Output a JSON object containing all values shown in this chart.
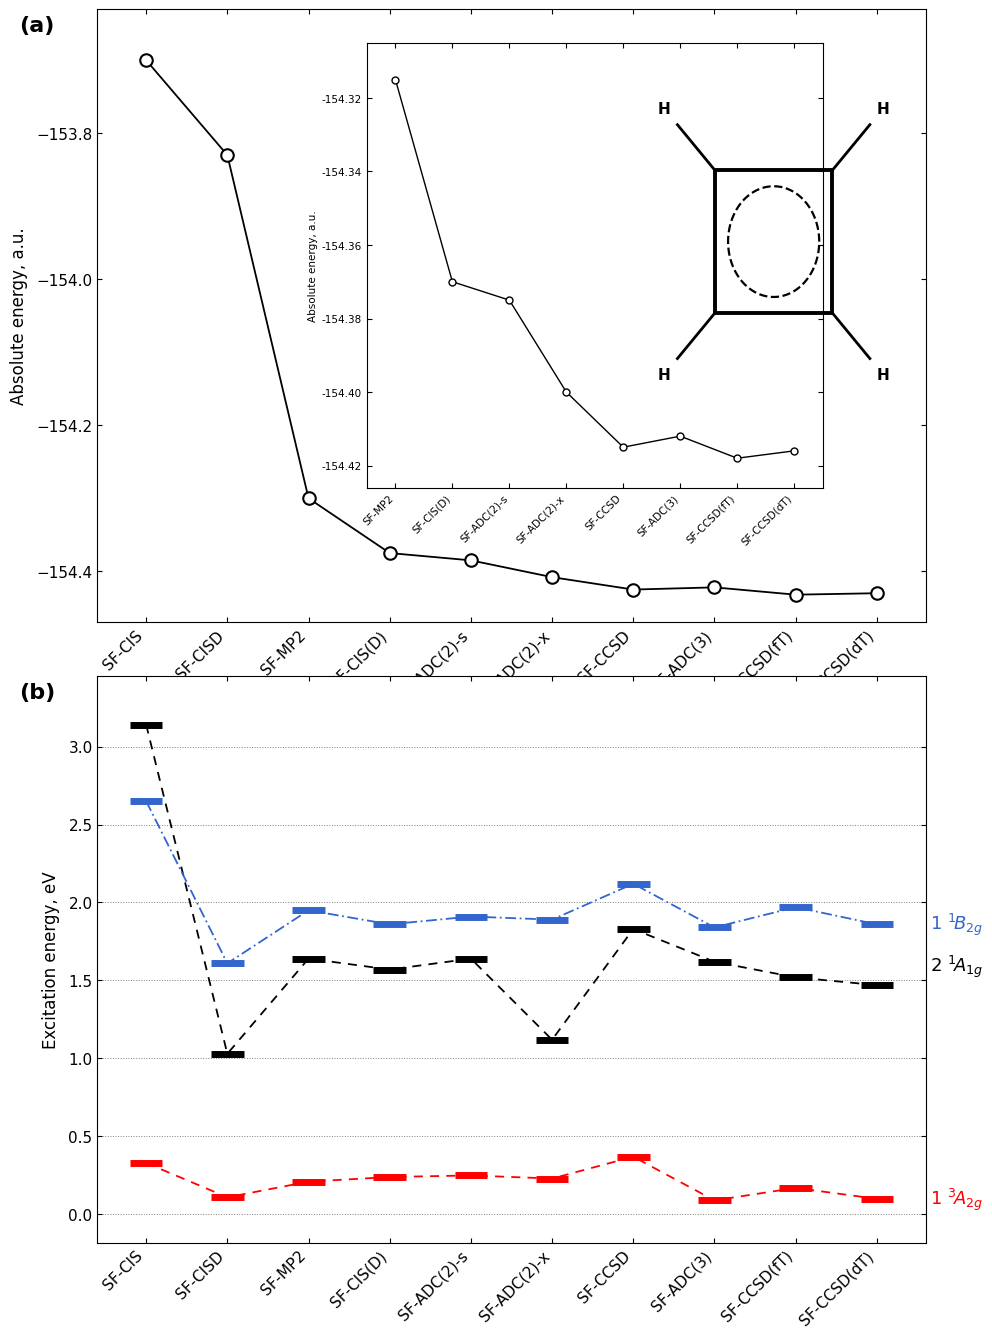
{
  "x_labels": [
    "SF-CIS",
    "SF-CISD",
    "SF-MP2",
    "SF-CIS(D)",
    "SF-ADC(2)-s",
    "SF-ADC(2)-x",
    "SF-CCSD",
    "SF-ADC(3)",
    "SF-CCSD(fT)",
    "SF-CCSD(dT)"
  ],
  "panel_a": {
    "y_values": [
      -153.7,
      -153.83,
      -154.3,
      -154.375,
      -154.385,
      -154.408,
      -154.425,
      -154.422,
      -154.432,
      -154.43
    ],
    "ylim": [
      -154.47,
      -153.63
    ],
    "yticks": [
      -154.4,
      -154.2,
      -154.0,
      -153.8
    ],
    "ylabel": "Absolute energy, a.u."
  },
  "inset": {
    "x_labels": [
      "SF-MP2",
      "SF-CIS(D)",
      "SF-ADC(2)-s",
      "SF-ADC(2)-x",
      "SF-CCSD",
      "SF-ADC(3)",
      "SF-CCSD(fT)",
      "SF-CCSD(dT)"
    ],
    "y_values": [
      -154.315,
      -154.37,
      -154.375,
      -154.4,
      -154.415,
      -154.412,
      -154.418,
      -154.416
    ],
    "ylim": [
      -154.426,
      -154.305
    ],
    "yticks": [
      -154.42,
      -154.4,
      -154.38,
      -154.36,
      -154.34,
      -154.32
    ],
    "ylabel": "Absolute energy, a.u."
  },
  "panel_b": {
    "ylabel": "Excitation energy, eV",
    "ylim": [
      -0.18,
      3.45
    ],
    "yticks": [
      0.0,
      0.5,
      1.0,
      1.5,
      2.0,
      2.5,
      3.0
    ],
    "black_values": [
      3.14,
      1.03,
      1.64,
      1.57,
      1.64,
      1.12,
      1.83,
      1.62,
      1.52,
      1.47
    ],
    "blue_values": [
      2.65,
      1.61,
      1.95,
      1.86,
      1.91,
      1.89,
      2.12,
      1.84,
      1.97,
      1.86
    ],
    "red_values": [
      0.33,
      0.11,
      0.21,
      0.24,
      0.25,
      0.23,
      0.37,
      0.09,
      0.17,
      0.1
    ],
    "label_blue": "1 $^1$$B_{2g}$",
    "label_black": "2 $^1$$A_{1g}$",
    "label_red": "1 $^3$$A_{2g}$"
  }
}
